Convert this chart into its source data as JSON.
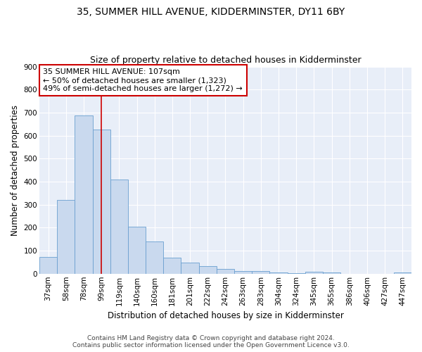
{
  "title": "35, SUMMER HILL AVENUE, KIDDERMINSTER, DY11 6BY",
  "subtitle": "Size of property relative to detached houses in Kidderminster",
  "xlabel": "Distribution of detached houses by size in Kidderminster",
  "ylabel": "Number of detached properties",
  "categories": [
    "37sqm",
    "58sqm",
    "78sqm",
    "99sqm",
    "119sqm",
    "140sqm",
    "160sqm",
    "181sqm",
    "201sqm",
    "222sqm",
    "242sqm",
    "263sqm",
    "283sqm",
    "304sqm",
    "324sqm",
    "345sqm",
    "365sqm",
    "386sqm",
    "406sqm",
    "427sqm",
    "447sqm"
  ],
  "values": [
    72,
    320,
    688,
    625,
    410,
    205,
    140,
    70,
    47,
    32,
    20,
    10,
    10,
    5,
    2,
    8,
    5,
    0,
    0,
    0,
    5
  ],
  "bar_color": "#c9d9ee",
  "bar_edge_color": "#6a9fd0",
  "highlight_index": 3,
  "highlight_line_color": "#cc0000",
  "annotation_text": "35 SUMMER HILL AVENUE: 107sqm\n← 50% of detached houses are smaller (1,323)\n49% of semi-detached houses are larger (1,272) →",
  "annotation_box_color": "#ffffff",
  "annotation_box_edge_color": "#cc0000",
  "ylim": [
    0,
    900
  ],
  "yticks": [
    0,
    100,
    200,
    300,
    400,
    500,
    600,
    700,
    800,
    900
  ],
  "footer_line1": "Contains HM Land Registry data © Crown copyright and database right 2024.",
  "footer_line2": "Contains public sector information licensed under the Open Government Licence v3.0.",
  "bg_color": "#e8eef8",
  "title_fontsize": 10,
  "subtitle_fontsize": 9,
  "axis_label_fontsize": 8.5,
  "tick_fontsize": 7.5,
  "annotation_fontsize": 8,
  "footer_fontsize": 6.5
}
